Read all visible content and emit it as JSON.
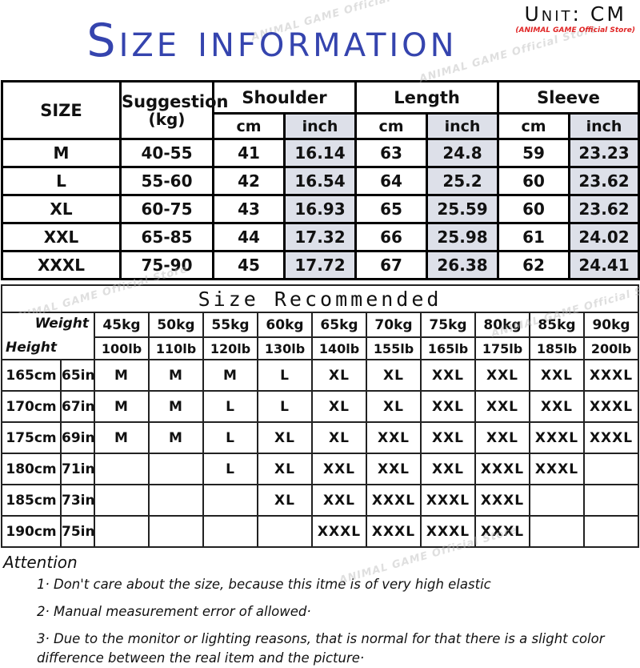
{
  "header": {
    "title": "Size information",
    "unit_label": "Unit: CM",
    "store_label": "(ANIMAL GAME Official Store)",
    "watermark": "ANIMAL GAME Official Store"
  },
  "colors": {
    "title_blue": "#3544ae",
    "store_red": "#e02525",
    "inch_bg": "#dde0e9",
    "bar_bg": "#f0f0ee",
    "size_m": "#faf0c3",
    "size_l": "#ccd6ee",
    "size_xl": "#fae0cb",
    "size_xxl": "#cfd8e0",
    "size_xxxl": "#c6c6c1"
  },
  "size_table": {
    "col_size": "SIZE",
    "col_suggestion_line1": "Suggestion",
    "col_suggestion_line2": "(kg)",
    "groups": [
      "Shoulder",
      "Length",
      "Sleeve"
    ],
    "unit_cm": "cm",
    "unit_inch": "inch",
    "rows": [
      {
        "size": "M",
        "suggestion": "40-55",
        "shoulder_cm": "41",
        "shoulder_in": "16.14",
        "length_cm": "63",
        "length_in": "24.8",
        "sleeve_cm": "59",
        "sleeve_in": "23.23"
      },
      {
        "size": "L",
        "suggestion": "55-60",
        "shoulder_cm": "42",
        "shoulder_in": "16.54",
        "length_cm": "64",
        "length_in": "25.2",
        "sleeve_cm": "60",
        "sleeve_in": "23.62"
      },
      {
        "size": "XL",
        "suggestion": "60-75",
        "shoulder_cm": "43",
        "shoulder_in": "16.93",
        "length_cm": "65",
        "length_in": "25.59",
        "sleeve_cm": "60",
        "sleeve_in": "23.62"
      },
      {
        "size": "XXL",
        "suggestion": "65-85",
        "shoulder_cm": "44",
        "shoulder_in": "17.32",
        "length_cm": "66",
        "length_in": "25.98",
        "sleeve_cm": "61",
        "sleeve_in": "24.02"
      },
      {
        "size": "XXXL",
        "suggestion": "75-90",
        "shoulder_cm": "45",
        "shoulder_in": "17.72",
        "length_cm": "67",
        "length_in": "26.38",
        "sleeve_cm": "62",
        "sleeve_in": "24.41"
      }
    ]
  },
  "recommend_table": {
    "title": "Size Recommended",
    "weight_label": "Weight",
    "height_label": "Height",
    "weights_kg": [
      "45kg",
      "50kg",
      "55kg",
      "60kg",
      "65kg",
      "70kg",
      "75kg",
      "80kg",
      "85kg",
      "90kg"
    ],
    "weights_lb": [
      "100lb",
      "110lb",
      "120lb",
      "130lb",
      "140lb",
      "155lb",
      "165lb",
      "175lb",
      "185lb",
      "200lb"
    ],
    "rows": [
      {
        "cm": "165cm",
        "in": "65in",
        "cells": [
          "M",
          "M",
          "M",
          "L",
          "XL",
          "XL",
          "XXL",
          "XXL",
          "XXL",
          "XXXL"
        ]
      },
      {
        "cm": "170cm",
        "in": "67in",
        "cells": [
          "M",
          "M",
          "L",
          "L",
          "XL",
          "XL",
          "XXL",
          "XXL",
          "XXL",
          "XXXL"
        ]
      },
      {
        "cm": "175cm",
        "in": "69in",
        "cells": [
          "M",
          "M",
          "L",
          "XL",
          "XL",
          "XXL",
          "XXL",
          "XXL",
          "XXXL",
          "XXXL"
        ]
      },
      {
        "cm": "180cm",
        "in": "71in",
        "cells": [
          "",
          "",
          "L",
          "XL",
          "XXL",
          "XXL",
          "XXL",
          "XXXL",
          "XXXL",
          ""
        ]
      },
      {
        "cm": "185cm",
        "in": "73in",
        "cells": [
          "",
          "",
          "",
          "XL",
          "XXL",
          "XXXL",
          "XXXL",
          "XXXL",
          "",
          ""
        ]
      },
      {
        "cm": "190cm",
        "in": "75in",
        "cells": [
          "",
          "",
          "",
          "",
          "XXXL",
          "XXXL",
          "XXXL",
          "XXXL",
          "",
          ""
        ]
      }
    ]
  },
  "attention": {
    "label": "Attention",
    "notes": [
      "1·  Don't care about the size, because this itme is of very high elastic",
      "2·  Manual measurement error of allowed·",
      "3·  Due to the monitor or lighting reasons, that is normal for that there is a slight color difference between the real item and the picture·"
    ]
  }
}
